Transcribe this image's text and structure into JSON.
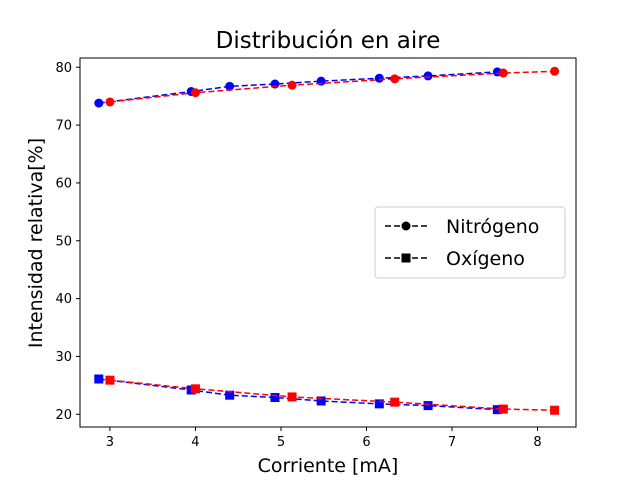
{
  "chart_data": {
    "type": "line",
    "title": "Distribución en aire",
    "xlabel": "Corriente [mA]",
    "ylabel": "Intensidad relativa[%]",
    "xlim": [
      2.65,
      8.45
    ],
    "ylim": [
      17.8,
      81.6
    ],
    "xticks": [
      3,
      4,
      5,
      6,
      7,
      8
    ],
    "yticks": [
      20,
      30,
      40,
      50,
      60,
      70,
      80
    ],
    "grid": false,
    "legend_position": "center-right",
    "legend": [
      {
        "label": "Nitrógeno",
        "marker": "circle",
        "color": "#000000"
      },
      {
        "label": "Oxígeno",
        "marker": "square",
        "color": "#000000"
      }
    ],
    "series": [
      {
        "group": "Nitrógeno",
        "marker": "circle",
        "color": "#0000ff",
        "x": [
          2.87,
          3.95,
          4.4,
          4.93,
          5.47,
          6.15,
          6.72,
          7.53
        ],
        "y": [
          73.8,
          75.8,
          76.7,
          77.1,
          77.6,
          78.1,
          78.5,
          79.2
        ]
      },
      {
        "group": "Nitrógeno",
        "marker": "circle",
        "color": "#ff0000",
        "x": [
          3.0,
          4.0,
          5.13,
          6.33,
          7.6,
          8.2
        ],
        "y": [
          74.0,
          75.6,
          76.9,
          78.0,
          79.0,
          79.3
        ]
      },
      {
        "group": "Oxígeno",
        "marker": "square",
        "color": "#0000ff",
        "x": [
          2.87,
          3.95,
          4.4,
          4.93,
          5.47,
          6.15,
          6.72,
          7.53
        ],
        "y": [
          26.1,
          24.2,
          23.3,
          22.9,
          22.3,
          21.8,
          21.5,
          20.8
        ]
      },
      {
        "group": "Oxígeno",
        "marker": "square",
        "color": "#ff0000",
        "x": [
          3.0,
          4.0,
          5.13,
          6.33,
          7.6,
          8.2
        ],
        "y": [
          25.9,
          24.4,
          23.0,
          22.1,
          20.9,
          20.7
        ]
      }
    ]
  }
}
